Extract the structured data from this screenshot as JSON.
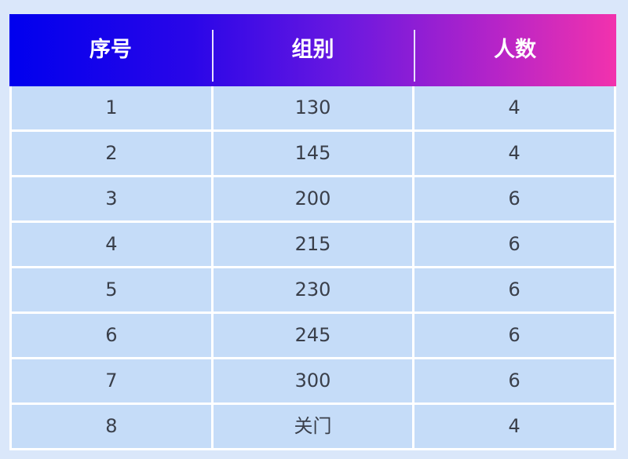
{
  "table": {
    "headers": [
      "序号",
      "组别",
      "人数"
    ],
    "rows": [
      [
        "1",
        "130",
        "4"
      ],
      [
        "2",
        "145",
        "4"
      ],
      [
        "3",
        "200",
        "6"
      ],
      [
        "4",
        "215",
        "6"
      ],
      [
        "5",
        "230",
        "6"
      ],
      [
        "6",
        "245",
        "6"
      ],
      [
        "7",
        "300",
        "6"
      ],
      [
        "8",
        "关门",
        "4"
      ]
    ]
  },
  "colors": {
    "header_start": "#0000ee",
    "header_end": "#f232ad",
    "cell_bg": "#c5dcf8",
    "page_bg": "#dae7fa"
  }
}
